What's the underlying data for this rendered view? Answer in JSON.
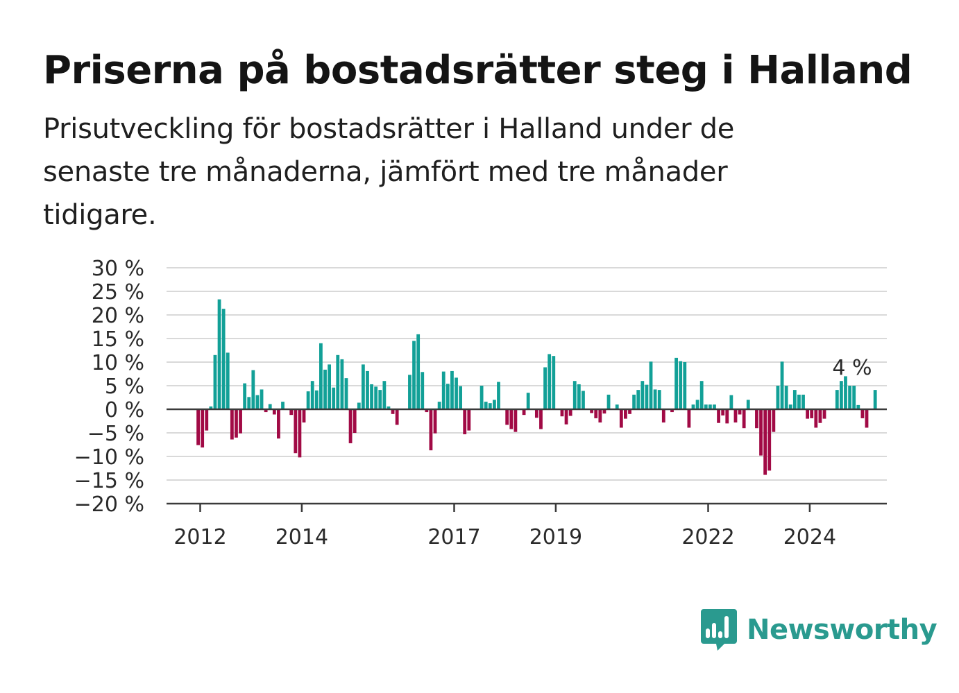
{
  "title": "Priserna på bostadsrätter steg i Halland",
  "subtitle": "Prisutveckling för bostadsrätter i Halland under de senaste tre månaderna, jämfört med tre månader tidigare.",
  "brand": {
    "name": "Newsworthy",
    "icon": "bar-chart-speech-bubble-icon",
    "color": "#2a9a8f"
  },
  "colors": {
    "positive": "#12a097",
    "negative": "#a10a45",
    "grid": "#d9d9d9",
    "axis": "#3a3a3a"
  },
  "chart_data": {
    "type": "bar",
    "title": "Priserna på bostadsrätter steg i Halland",
    "ylim": [
      -20,
      30
    ],
    "yticks": [
      30,
      25,
      20,
      15,
      10,
      5,
      0,
      -5,
      -10,
      -15,
      -20
    ],
    "ytick_labels": [
      "30 %",
      "25 %",
      "20 %",
      "15 %",
      "10 %",
      "5 %",
      "0 %",
      "−5 %",
      "−10 %",
      "−15 %",
      "−20 %"
    ],
    "xticks": [
      {
        "label": "2012",
        "x": 2012
      },
      {
        "label": "2014",
        "x": 2014
      },
      {
        "label": "2017",
        "x": 2017
      },
      {
        "label": "2019",
        "x": 2019
      },
      {
        "label": "2022",
        "x": 2022
      },
      {
        "label": "2024",
        "x": 2024
      }
    ],
    "x_start": 2011.96,
    "x_step": 0.0833,
    "grid": true,
    "last_value_label": "4 %",
    "values": [
      -7.6,
      -8.1,
      -4.5,
      0.6,
      11.5,
      23.3,
      21.3,
      12.0,
      -6.4,
      -6.0,
      -5.1,
      5.5,
      2.6,
      8.3,
      3.0,
      4.2,
      -0.6,
      1.1,
      -1.1,
      -6.2,
      1.6,
      0,
      -1.2,
      -9.3,
      -10.2,
      -2.8,
      3.8,
      6.0,
      4.0,
      14.0,
      8.4,
      9.5,
      4.6,
      11.5,
      10.6,
      6.6,
      -7.2,
      -5.0,
      1.4,
      9.5,
      8.1,
      5.3,
      4.8,
      4.1,
      6.0,
      0.6,
      -1.0,
      -3.3,
      0,
      0,
      7.3,
      14.5,
      15.9,
      7.9,
      -0.6,
      -8.7,
      -5.1,
      1.6,
      8.0,
      5.4,
      8.1,
      6.7,
      4.9,
      -5.3,
      -4.5,
      0,
      0,
      5.0,
      1.6,
      1.3,
      2.0,
      5.8,
      0,
      -3.3,
      -4.2,
      -4.8,
      0,
      -1.2,
      3.5,
      0,
      -1.8,
      -4.2,
      8.9,
      11.7,
      11.3,
      0,
      -1.5,
      -3.2,
      -1.4,
      6.0,
      5.3,
      3.9,
      0,
      -0.8,
      -1.9,
      -2.8,
      -0.9,
      3.1,
      0,
      1.0,
      -3.9,
      -2.0,
      -1.0,
      3.1,
      4.1,
      6.0,
      5.2,
      10.1,
      4.2,
      4.1,
      -2.8,
      0,
      -0.6,
      10.9,
      10.2,
      10.0,
      -3.9,
      1.0,
      2.0,
      6.0,
      1.0,
      1.0,
      1.0,
      -2.9,
      -1.3,
      -3.0,
      3.0,
      -2.8,
      -1.1,
      -4.0,
      2.0,
      0,
      -4.0,
      -9.8,
      -13.9,
      -13.0,
      -4.8,
      5.0,
      10.1,
      5.0,
      1.0,
      4.1,
      3.1,
      3.1,
      -2.0,
      -1.9,
      -3.9,
      -2.9,
      -2.0,
      0,
      0,
      4.1,
      6.0,
      7.0,
      5.0,
      5.0,
      0.9,
      -1.9,
      -3.9,
      0,
      4.1
    ]
  }
}
